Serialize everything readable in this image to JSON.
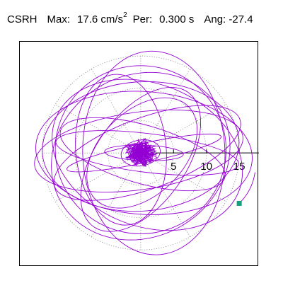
{
  "header": {
    "station": "CSRH",
    "max_label": "Max:",
    "max_value": "17.6 cm/s",
    "max_unit_exponent": "2",
    "period_label": "Per:",
    "period_value": "0.300 s",
    "angle_label": "Ang:",
    "angle_value": "-27.4"
  },
  "chart_data": {
    "type": "scatter",
    "title": "",
    "xlabel": "",
    "ylabel": "",
    "xlim": [
      -18.4,
      18.0
    ],
    "ylim": [
      -17.6,
      17.2
    ],
    "radial_ticks": [
      5,
      10,
      15
    ],
    "radial_tick_labels": [
      "5",
      "10",
      "15"
    ],
    "polar_grid": true,
    "grid_rings": [
      5,
      10,
      15
    ],
    "grid_spoke_angles_deg": [
      0,
      30,
      60,
      90,
      120,
      150,
      180,
      210,
      240,
      270,
      300,
      330
    ],
    "trace_color": "#9400d3",
    "marker_color": "#13a07e",
    "marker_point": [
      15.0,
      -7.8
    ],
    "orbits": [
      {
        "cx": 1.0,
        "cy": 0.0,
        "a": 14.0,
        "b": 3.0,
        "rot_deg": -7
      },
      {
        "cx": 0.5,
        "cy": 0.0,
        "a": 16.5,
        "b": 9.5,
        "rot_deg": -4
      },
      {
        "cx": 1.0,
        "cy": -0.3,
        "a": 15.0,
        "b": 11.0,
        "rot_deg": -22
      },
      {
        "cx": 0.0,
        "cy": 0.5,
        "a": 13.0,
        "b": 13.0,
        "rot_deg": 0
      },
      {
        "cx": -0.3,
        "cy": 0.3,
        "a": 16.0,
        "b": 6.0,
        "rot_deg": 8
      },
      {
        "cx": 0.5,
        "cy": 0.0,
        "a": 12.0,
        "b": 1.5,
        "rot_deg": 12
      },
      {
        "cx": 0.3,
        "cy": -0.2,
        "a": 13.0,
        "b": 4.5,
        "rot_deg": -16
      },
      {
        "cx": 0.2,
        "cy": 0.0,
        "a": 10.0,
        "b": 6.5,
        "rot_deg": 45
      },
      {
        "cx": 2.0,
        "cy": 0.0,
        "a": 15.5,
        "b": 11.0,
        "rot_deg": 92
      },
      {
        "cx": -3.0,
        "cy": 0.5,
        "a": 11.5,
        "b": 7.0,
        "rot_deg": 95
      },
      {
        "cx": 0.0,
        "cy": 1.0,
        "a": 15.0,
        "b": 10.0,
        "rot_deg": 4
      },
      {
        "cx": 0.0,
        "cy": -1.0,
        "a": 12.5,
        "b": 7.0,
        "rot_deg": 55
      },
      {
        "cx": 1.0,
        "cy": 0.0,
        "a": 15.0,
        "b": 5.5,
        "rot_deg": 20
      },
      {
        "cx": 0.0,
        "cy": -0.5,
        "a": 14.0,
        "b": 12.5,
        "rot_deg": 30
      },
      {
        "cx": 0.5,
        "cy": 0.0,
        "a": 6.0,
        "b": 1.2,
        "rot_deg": -2
      },
      {
        "cx": 0.0,
        "cy": 0.0,
        "a": 3.0,
        "b": 2.0,
        "rot_deg": 10
      },
      {
        "cx": 0.0,
        "cy": 0.0,
        "a": 2.0,
        "b": 1.2,
        "rot_deg": -30
      },
      {
        "cx": 0.0,
        "cy": 0.0,
        "a": 1.5,
        "b": 1.0,
        "rot_deg": 60
      }
    ]
  }
}
